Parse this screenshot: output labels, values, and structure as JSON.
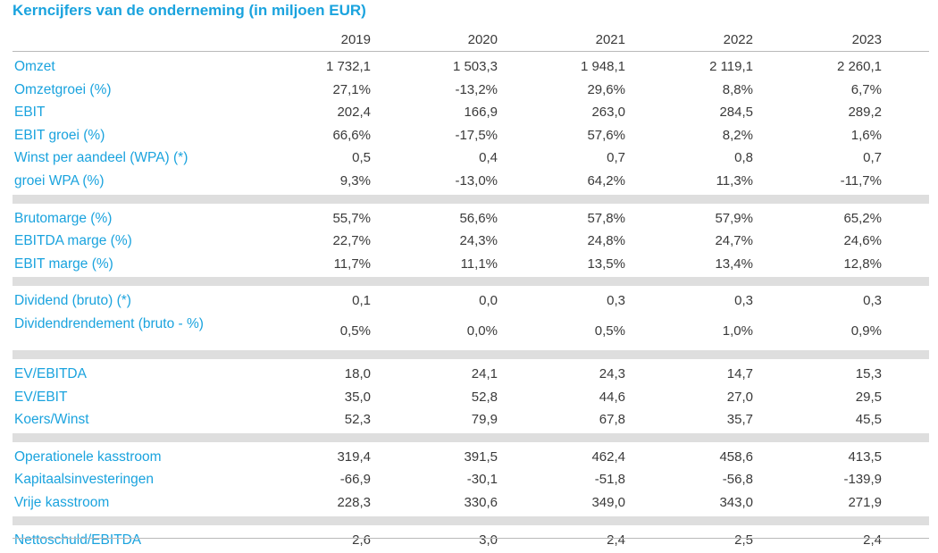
{
  "title": "Kerncijfers van de onderneming (in miljoen EUR)",
  "years": [
    "2019",
    "2020",
    "2021",
    "2022",
    "2023"
  ],
  "sections": [
    {
      "rows": [
        {
          "label": "Omzet",
          "values": [
            "1 732,1",
            "1 503,3",
            "1 948,1",
            "2 119,1",
            "2 260,1"
          ]
        },
        {
          "label": "Omzetgroei (%)",
          "values": [
            "27,1%",
            "-13,2%",
            "29,6%",
            "8,8%",
            "6,7%"
          ]
        },
        {
          "label": "EBIT",
          "values": [
            "202,4",
            "166,9",
            "263,0",
            "284,5",
            "289,2"
          ]
        },
        {
          "label": "EBIT groei (%)",
          "values": [
            "66,6%",
            "-17,5%",
            "57,6%",
            "8,2%",
            "1,6%"
          ]
        },
        {
          "label": "Winst per aandeel (WPA) (*)",
          "values": [
            "0,5",
            "0,4",
            "0,7",
            "0,8",
            "0,7"
          ]
        },
        {
          "label": "groei WPA (%)",
          "values": [
            "9,3%",
            "-13,0%",
            "64,2%",
            "11,3%",
            "-11,7%"
          ]
        }
      ]
    },
    {
      "rows": [
        {
          "label": "Brutomarge (%)",
          "values": [
            "55,7%",
            "56,6%",
            "57,8%",
            "57,9%",
            "65,2%"
          ]
        },
        {
          "label": "EBITDA marge (%)",
          "values": [
            "22,7%",
            "24,3%",
            "24,8%",
            "24,7%",
            "24,6%"
          ]
        },
        {
          "label": "EBIT marge (%)",
          "values": [
            "11,7%",
            "11,1%",
            "13,5%",
            "13,4%",
            "12,8%"
          ]
        }
      ]
    },
    {
      "rows": [
        {
          "label": "Dividend (bruto) (*)",
          "values": [
            "0,1",
            "0,0",
            "0,3",
            "0,3",
            "0,3"
          ]
        },
        {
          "label": "Dividendrendement (bruto - %)",
          "values": [
            "0,5%",
            "0,0%",
            "0,5%",
            "1,0%",
            "0,9%"
          ],
          "tall": true
        }
      ]
    },
    {
      "rows": [
        {
          "label": "EV/EBITDA",
          "values": [
            "18,0",
            "24,1",
            "24,3",
            "14,7",
            "15,3"
          ]
        },
        {
          "label": "EV/EBIT",
          "values": [
            "35,0",
            "52,8",
            "44,6",
            "27,0",
            "29,5"
          ]
        },
        {
          "label": "Koers/Winst",
          "values": [
            "52,3",
            "79,9",
            "67,8",
            "35,7",
            "45,5"
          ]
        }
      ]
    },
    {
      "rows": [
        {
          "label": "Operationele kasstroom",
          "values": [
            "319,4",
            "391,5",
            "462,4",
            "458,6",
            "413,5"
          ]
        },
        {
          "label": "Kapitaalsinvesteringen",
          "values": [
            "-66,9",
            "-30,1",
            "-51,8",
            "-56,8",
            "-139,9"
          ]
        },
        {
          "label": "Vrije kasstroom",
          "values": [
            "228,3",
            "330,6",
            "349,0",
            "343,0",
            "271,9"
          ]
        }
      ]
    },
    {
      "rows": [
        {
          "label": "Nettoschuld/EBITDA",
          "values": [
            "2,6",
            "3,0",
            "2,4",
            "2,5",
            "2,4"
          ]
        }
      ]
    }
  ]
}
